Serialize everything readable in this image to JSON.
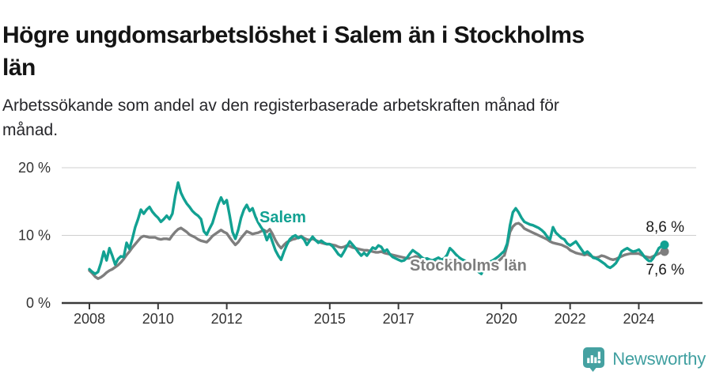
{
  "header": {
    "title_lines": [
      "Högre ungdomsarbetslöshet i Salem än i Stockholms",
      "län"
    ],
    "subtitle_lines": [
      "Arbetssökande som andel av den registerbaserade arbetskraften månad för",
      "månad."
    ]
  },
  "chart_data": {
    "type": "line",
    "x_interval": "monthly",
    "x_start": "2008-01",
    "x_end": "2024-10",
    "ylim": [
      0,
      20
    ],
    "grid": "horizontal",
    "y_ticks": [
      {
        "label": "0 %",
        "value": 0
      },
      {
        "label": "10 %",
        "value": 10
      },
      {
        "label": "20 %",
        "value": 20
      }
    ],
    "x_ticks": [
      {
        "label": "2008",
        "month_index": 0
      },
      {
        "label": "2010",
        "month_index": 24
      },
      {
        "label": "2012",
        "month_index": 48
      },
      {
        "label": "2015",
        "month_index": 84
      },
      {
        "label": "2017",
        "month_index": 108
      },
      {
        "label": "2020",
        "month_index": 144
      },
      {
        "label": "2022",
        "month_index": 168
      },
      {
        "label": "2024",
        "month_index": 192
      }
    ],
    "series": [
      {
        "name": "Stockholms län",
        "color": "#7e7e7e",
        "end_label": "7,6 %",
        "end_value": 7.6,
        "values": [
          4.8,
          4.4,
          3.9,
          3.6,
          3.8,
          4.1,
          4.5,
          4.8,
          5.0,
          5.3,
          5.6,
          6.0,
          6.5,
          7.1,
          7.6,
          8.2,
          8.7,
          9.2,
          9.7,
          9.9,
          9.8,
          9.7,
          9.7,
          9.7,
          9.5,
          9.4,
          9.5,
          9.5,
          9.4,
          10.0,
          10.5,
          10.9,
          11.1,
          10.8,
          10.5,
          10.1,
          9.9,
          9.7,
          9.4,
          9.2,
          9.1,
          9.0,
          9.4,
          9.9,
          10.2,
          10.5,
          10.8,
          10.5,
          10.3,
          9.7,
          9.1,
          8.6,
          9.0,
          9.6,
          10.1,
          10.6,
          10.4,
          10.2,
          10.3,
          10.4,
          10.6,
          10.8,
          10.5,
          10.9,
          10.2,
          9.3,
          8.6,
          8.1,
          8.6,
          9.0,
          9.2,
          9.4,
          9.5,
          9.7,
          9.9,
          9.6,
          9.4,
          9.3,
          9.5,
          9.3,
          9.1,
          8.9,
          8.8,
          8.7,
          8.7,
          8.6,
          8.5,
          8.3,
          8.2,
          8.3,
          8.5,
          8.4,
          8.2,
          8.1,
          8.0,
          7.9,
          7.8,
          7.8,
          7.7,
          7.6,
          7.5,
          7.5,
          7.6,
          7.4,
          7.3,
          7.2,
          7.1,
          7.0,
          6.9,
          6.8,
          6.7,
          6.6,
          6.6,
          6.7,
          6.9,
          6.8,
          6.6,
          6.5,
          6.4,
          6.3,
          6.2,
          6.1,
          6.1,
          6.0,
          6.0,
          6.1,
          6.3,
          6.2,
          6.0,
          5.9,
          5.8,
          5.8,
          5.7,
          5.6,
          5.6,
          5.6,
          5.7,
          5.9,
          6.1,
          6.0,
          5.9,
          5.9,
          6.0,
          6.2,
          6.6,
          7.0,
          8.5,
          10.5,
          11.3,
          11.7,
          11.8,
          11.5,
          11.0,
          10.8,
          10.6,
          10.4,
          10.2,
          10.0,
          9.8,
          9.6,
          9.4,
          9.1,
          8.9,
          8.8,
          8.7,
          8.6,
          8.4,
          8.2,
          7.8,
          7.6,
          7.4,
          7.3,
          7.2,
          7.1,
          7.2,
          7.0,
          6.8,
          6.7,
          6.8,
          7.0,
          6.9,
          6.7,
          6.5,
          6.4,
          6.5,
          6.7,
          6.9,
          7.1,
          7.2,
          7.3,
          7.3,
          7.3,
          7.3,
          7.1,
          6.9,
          6.8,
          6.7,
          6.9,
          7.1,
          7.3,
          7.5,
          7.6
        ]
      },
      {
        "name": "Salem",
        "color": "#12a192",
        "end_label": "8,6 %",
        "end_value": 8.6,
        "values": [
          5.0,
          4.6,
          4.3,
          4.6,
          5.9,
          7.6,
          6.3,
          8.1,
          7.0,
          5.7,
          6.5,
          6.9,
          6.8,
          8.9,
          8.0,
          9.5,
          11.2,
          12.4,
          13.8,
          13.2,
          13.8,
          14.2,
          13.5,
          13.0,
          12.6,
          12.0,
          12.4,
          12.9,
          12.4,
          13.2,
          15.8,
          17.8,
          16.3,
          15.4,
          14.7,
          14.2,
          13.6,
          13.2,
          12.9,
          12.4,
          10.6,
          10.1,
          11.0,
          11.8,
          13.2,
          14.6,
          15.6,
          14.7,
          15.2,
          13.0,
          10.5,
          9.5,
          10.8,
          12.6,
          13.8,
          14.5,
          13.6,
          14.0,
          12.8,
          11.9,
          11.2,
          10.6,
          9.3,
          10.2,
          9.0,
          7.8,
          7.0,
          6.4,
          7.6,
          8.6,
          9.4,
          9.8,
          10.0,
          9.6,
          9.8,
          9.4,
          8.6,
          9.2,
          9.8,
          9.3,
          8.9,
          9.2,
          8.9,
          8.7,
          8.7,
          8.4,
          7.8,
          7.2,
          6.9,
          7.6,
          8.4,
          9.1,
          8.6,
          8.1,
          7.5,
          7.0,
          7.4,
          7.0,
          7.6,
          8.2,
          8.0,
          8.5,
          8.3,
          7.6,
          7.9,
          7.2,
          6.8,
          6.6,
          6.4,
          6.2,
          6.3,
          6.7,
          7.3,
          7.8,
          7.5,
          7.2,
          6.8,
          6.5,
          6.6,
          6.4,
          6.3,
          6.5,
          6.7,
          6.4,
          6.6,
          7.1,
          8.1,
          7.7,
          7.2,
          6.8,
          6.5,
          6.3,
          6.1,
          6.0,
          5.8,
          5.5,
          4.6,
          4.3,
          5.2,
          5.8,
          6.1,
          6.3,
          6.6,
          6.9,
          7.3,
          7.7,
          8.8,
          11.5,
          13.4,
          14.0,
          13.4,
          12.6,
          12.0,
          11.8,
          11.6,
          11.5,
          11.3,
          11.1,
          10.8,
          10.4,
          9.8,
          9.4,
          11.2,
          10.4,
          10.0,
          9.6,
          9.4,
          8.8,
          8.5,
          8.8,
          9.1,
          8.5,
          7.9,
          7.3,
          7.6,
          7.2,
          6.7,
          6.6,
          6.4,
          6.1,
          5.8,
          5.4,
          5.2,
          5.5,
          5.9,
          6.6,
          7.6,
          7.9,
          8.1,
          7.8,
          7.6,
          7.7,
          7.9,
          7.4,
          6.8,
          6.4,
          6.1,
          6.6,
          7.3,
          8.1,
          8.4,
          8.6
        ]
      }
    ]
  },
  "footer": {
    "brand": "Newsworthy",
    "logo_icon": "newsworthy-speech-bubble-chart-icon",
    "brand_color": "#3f9fa0"
  }
}
